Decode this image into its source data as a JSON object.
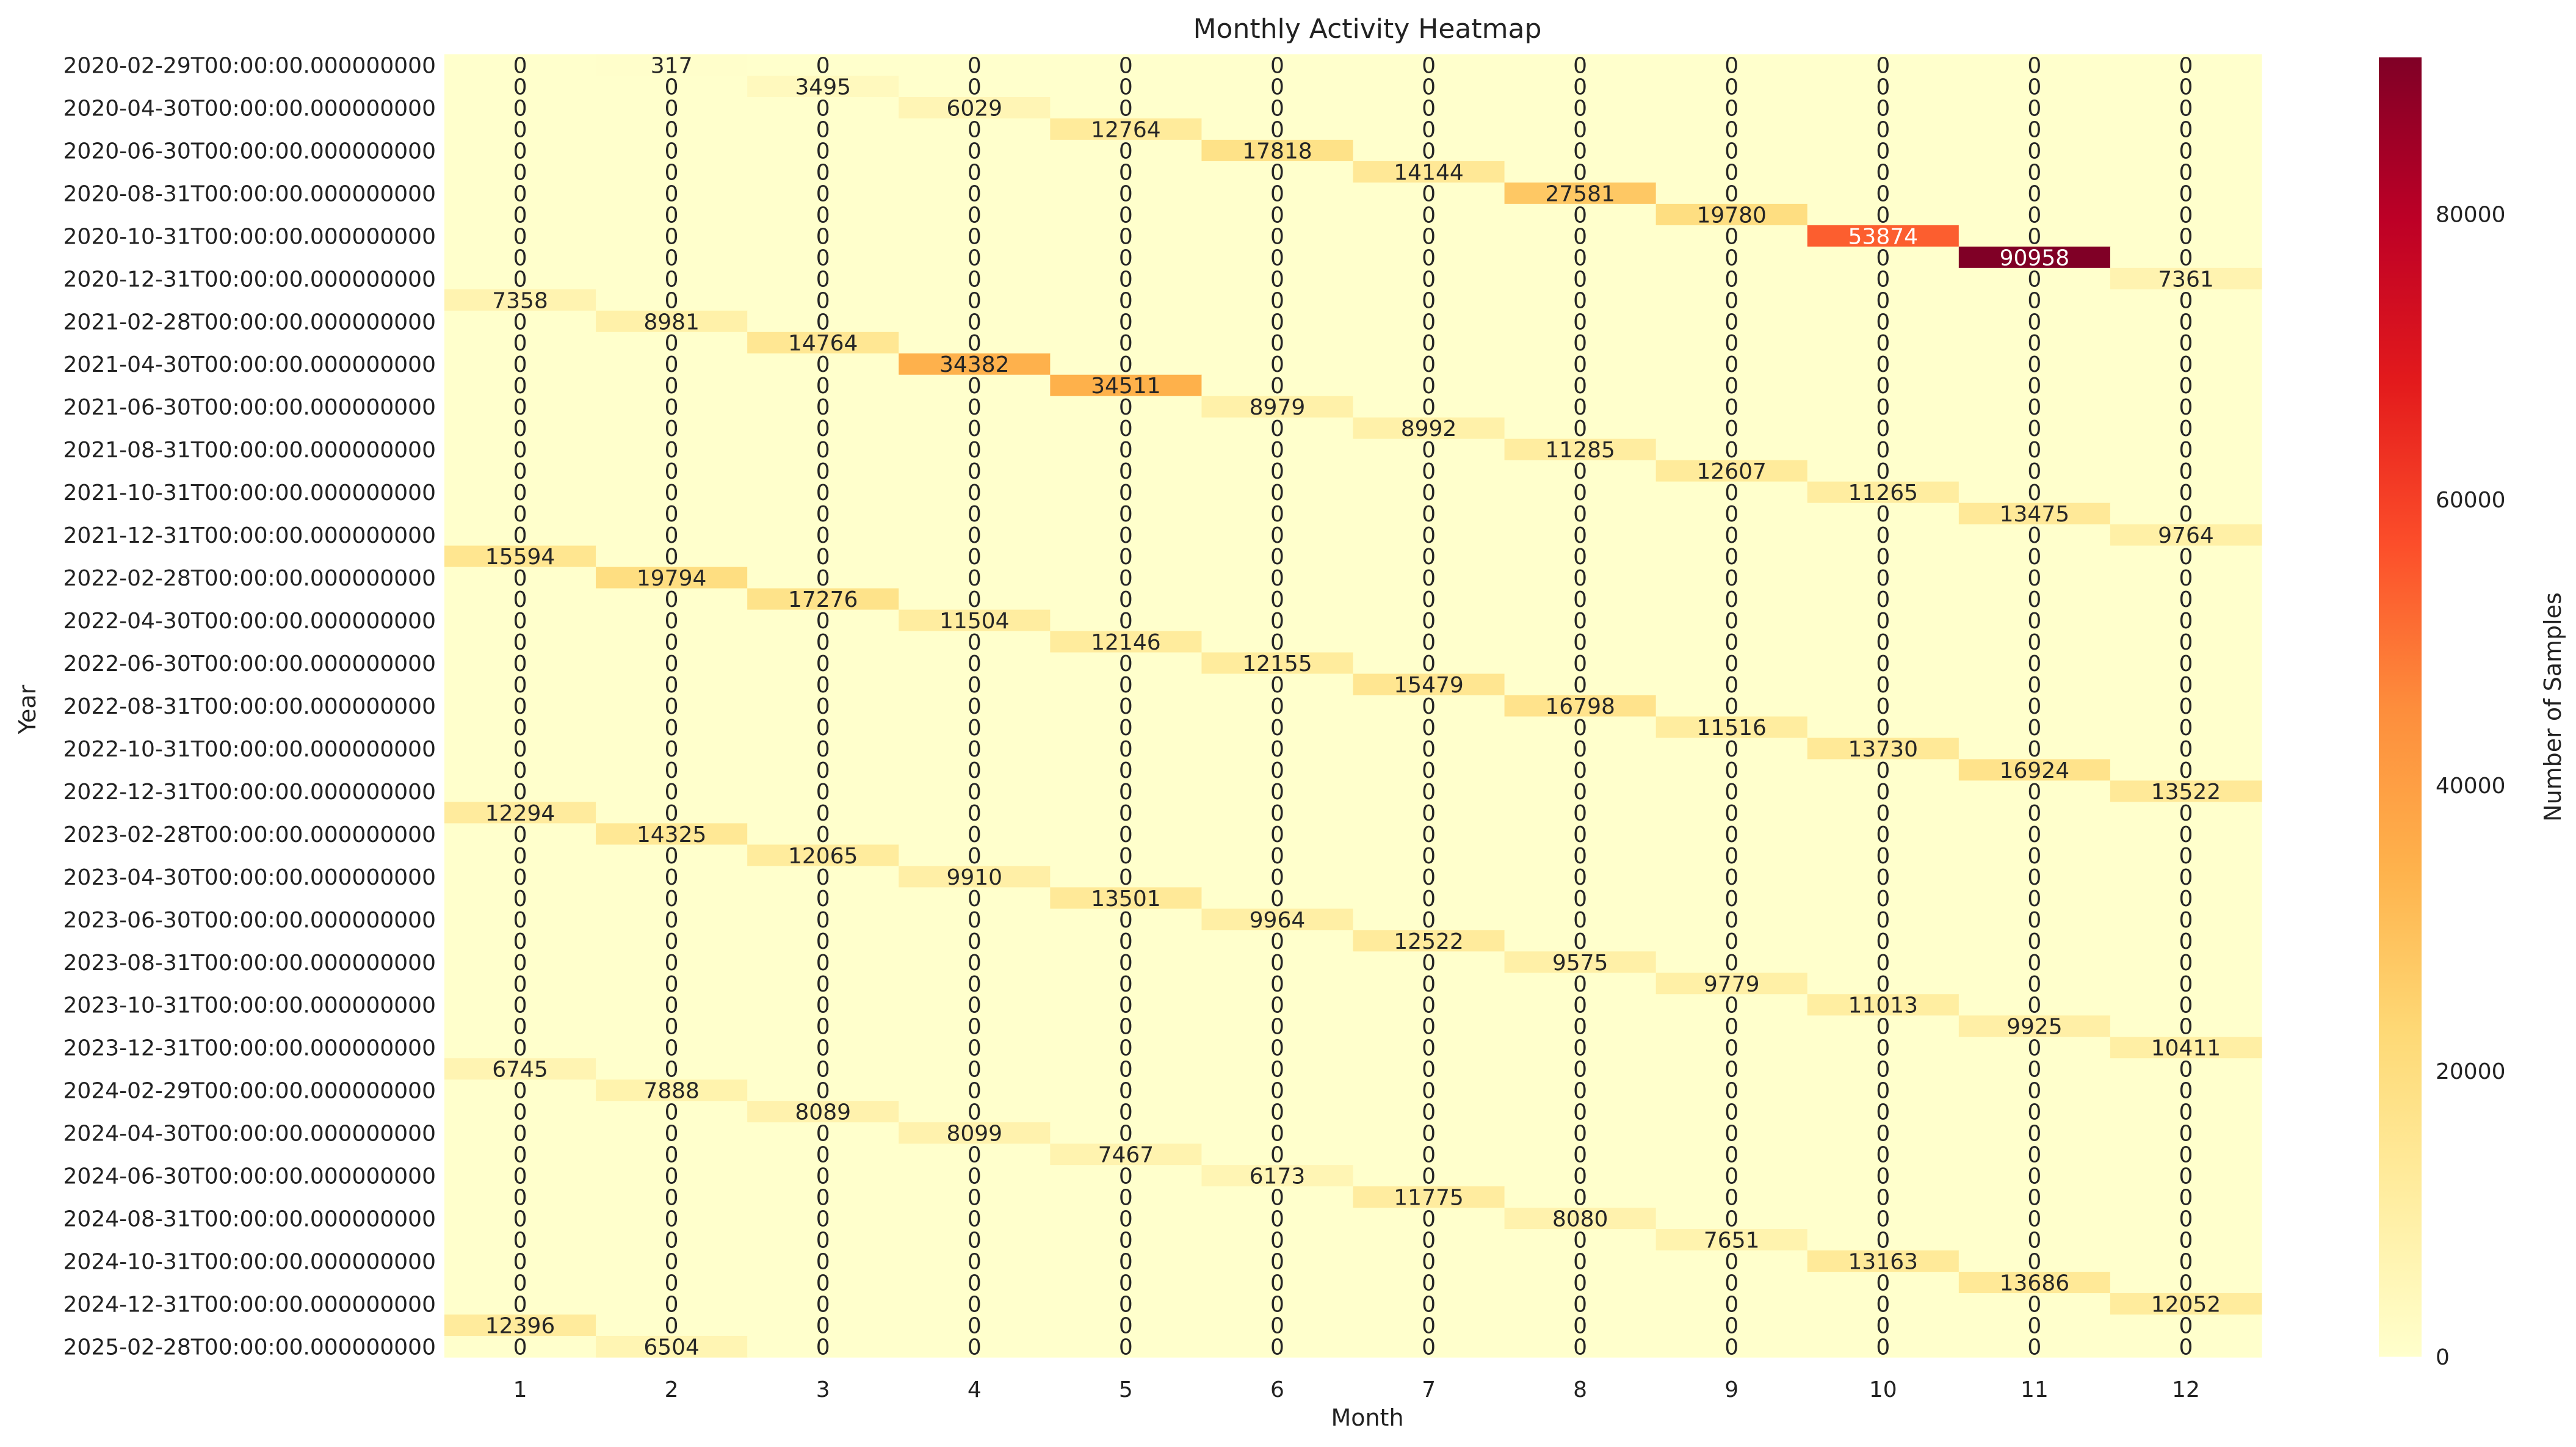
{
  "chart_data": {
    "type": "heatmap",
    "title": "Monthly Activity Heatmap",
    "xlabel": "Month",
    "ylabel": "Year",
    "colorbar_label": "Number of Samples",
    "colormap": "YlOrRd",
    "colorbar_range": [
      0,
      90958
    ],
    "colorbar_ticks": [
      0,
      20000,
      40000,
      60000,
      80000
    ],
    "x_categories": [
      "1",
      "2",
      "3",
      "4",
      "5",
      "6",
      "7",
      "8",
      "9",
      "10",
      "11",
      "12"
    ],
    "rows": [
      {
        "label": "2020-02-29T00:00:00.000000000",
        "month": 2,
        "value": 317
      },
      {
        "label": "",
        "month": 3,
        "value": 3495
      },
      {
        "label": "2020-04-30T00:00:00.000000000",
        "month": 4,
        "value": 6029
      },
      {
        "label": "",
        "month": 5,
        "value": 12764
      },
      {
        "label": "2020-06-30T00:00:00.000000000",
        "month": 6,
        "value": 17818
      },
      {
        "label": "",
        "month": 7,
        "value": 14144
      },
      {
        "label": "2020-08-31T00:00:00.000000000",
        "month": 8,
        "value": 27581
      },
      {
        "label": "",
        "month": 9,
        "value": 19780
      },
      {
        "label": "2020-10-31T00:00:00.000000000",
        "month": 10,
        "value": 53874
      },
      {
        "label": "",
        "month": 11,
        "value": 90958
      },
      {
        "label": "2020-12-31T00:00:00.000000000",
        "month": 12,
        "value": 7361
      },
      {
        "label": "",
        "month": 1,
        "value": 7358
      },
      {
        "label": "2021-02-28T00:00:00.000000000",
        "month": 2,
        "value": 8981
      },
      {
        "label": "",
        "month": 3,
        "value": 14764
      },
      {
        "label": "2021-04-30T00:00:00.000000000",
        "month": 4,
        "value": 34382
      },
      {
        "label": "",
        "month": 5,
        "value": 34511
      },
      {
        "label": "2021-06-30T00:00:00.000000000",
        "month": 6,
        "value": 8979
      },
      {
        "label": "",
        "month": 7,
        "value": 8992
      },
      {
        "label": "2021-08-31T00:00:00.000000000",
        "month": 8,
        "value": 11285
      },
      {
        "label": "",
        "month": 9,
        "value": 12607
      },
      {
        "label": "2021-10-31T00:00:00.000000000",
        "month": 10,
        "value": 11265
      },
      {
        "label": "",
        "month": 11,
        "value": 13475
      },
      {
        "label": "2021-12-31T00:00:00.000000000",
        "month": 12,
        "value": 9764
      },
      {
        "label": "",
        "month": 1,
        "value": 15594
      },
      {
        "label": "2022-02-28T00:00:00.000000000",
        "month": 2,
        "value": 19794
      },
      {
        "label": "",
        "month": 3,
        "value": 17276
      },
      {
        "label": "2022-04-30T00:00:00.000000000",
        "month": 4,
        "value": 11504
      },
      {
        "label": "",
        "month": 5,
        "value": 12146
      },
      {
        "label": "2022-06-30T00:00:00.000000000",
        "month": 6,
        "value": 12155
      },
      {
        "label": "",
        "month": 7,
        "value": 15479
      },
      {
        "label": "2022-08-31T00:00:00.000000000",
        "month": 8,
        "value": 16798
      },
      {
        "label": "",
        "month": 9,
        "value": 11516
      },
      {
        "label": "2022-10-31T00:00:00.000000000",
        "month": 10,
        "value": 13730
      },
      {
        "label": "",
        "month": 11,
        "value": 16924
      },
      {
        "label": "2022-12-31T00:00:00.000000000",
        "month": 12,
        "value": 13522
      },
      {
        "label": "",
        "month": 1,
        "value": 12294
      },
      {
        "label": "2023-02-28T00:00:00.000000000",
        "month": 2,
        "value": 14325
      },
      {
        "label": "",
        "month": 3,
        "value": 12065
      },
      {
        "label": "2023-04-30T00:00:00.000000000",
        "month": 4,
        "value": 9910
      },
      {
        "label": "",
        "month": 5,
        "value": 13501
      },
      {
        "label": "2023-06-30T00:00:00.000000000",
        "month": 6,
        "value": 9964
      },
      {
        "label": "",
        "month": 7,
        "value": 12522
      },
      {
        "label": "2023-08-31T00:00:00.000000000",
        "month": 8,
        "value": 9575
      },
      {
        "label": "",
        "month": 9,
        "value": 9779
      },
      {
        "label": "2023-10-31T00:00:00.000000000",
        "month": 10,
        "value": 11013
      },
      {
        "label": "",
        "month": 11,
        "value": 9925
      },
      {
        "label": "2023-12-31T00:00:00.000000000",
        "month": 12,
        "value": 10411
      },
      {
        "label": "",
        "month": 1,
        "value": 6745
      },
      {
        "label": "2024-02-29T00:00:00.000000000",
        "month": 2,
        "value": 7888
      },
      {
        "label": "",
        "month": 3,
        "value": 8089
      },
      {
        "label": "2024-04-30T00:00:00.000000000",
        "month": 4,
        "value": 8099
      },
      {
        "label": "",
        "month": 5,
        "value": 7467
      },
      {
        "label": "2024-06-30T00:00:00.000000000",
        "month": 6,
        "value": 6173
      },
      {
        "label": "",
        "month": 7,
        "value": 11775
      },
      {
        "label": "2024-08-31T00:00:00.000000000",
        "month": 8,
        "value": 8080
      },
      {
        "label": "",
        "month": 9,
        "value": 7651
      },
      {
        "label": "2024-10-31T00:00:00.000000000",
        "month": 10,
        "value": 13163
      },
      {
        "label": "",
        "month": 11,
        "value": 13686
      },
      {
        "label": "2024-12-31T00:00:00.000000000",
        "month": 12,
        "value": 12052
      },
      {
        "label": "",
        "month": 1,
        "value": 12396
      },
      {
        "label": "2025-02-28T00:00:00.000000000",
        "month": 2,
        "value": 6504
      }
    ]
  }
}
